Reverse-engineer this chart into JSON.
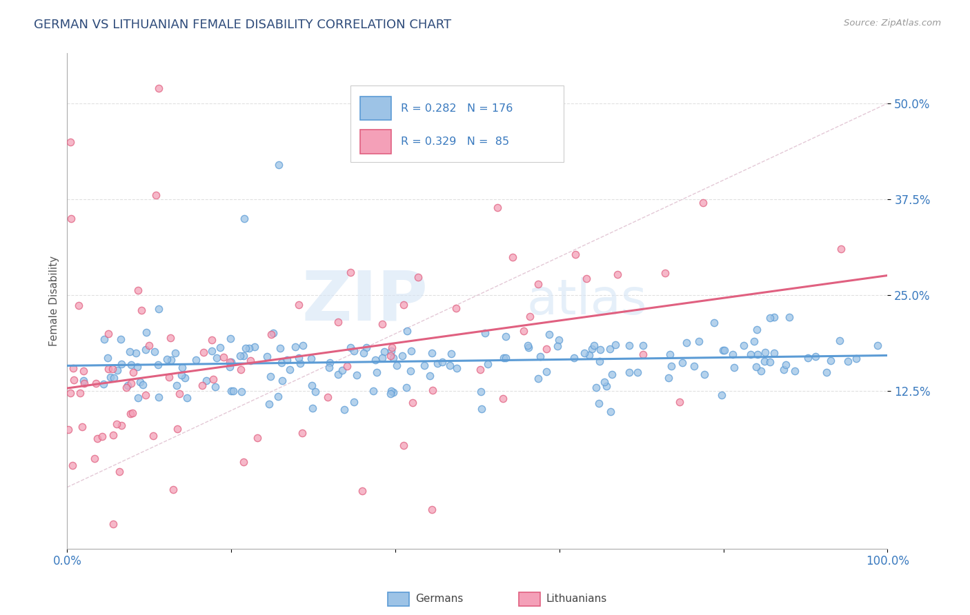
{
  "title": "GERMAN VS LITHUANIAN FEMALE DISABILITY CORRELATION CHART",
  "source": "Source: ZipAtlas.com",
  "ylabel": "Female Disability",
  "ytick_labels": [
    "12.5%",
    "25.0%",
    "37.5%",
    "50.0%"
  ],
  "ytick_values": [
    0.125,
    0.25,
    0.375,
    0.5
  ],
  "xlim": [
    0.0,
    1.0
  ],
  "ylim": [
    -0.08,
    0.565
  ],
  "german_color": "#5b9bd5",
  "german_face": "#9dc3e6",
  "lithuanian_color": "#e06080",
  "lithuanian_face": "#f4a0b8",
  "R_german": 0.282,
  "N_german": 176,
  "R_lithuanian": 0.329,
  "N_lithuanian": 85,
  "watermark_zip": "ZIP",
  "watermark_atlas": "atlas",
  "legend_german": "Germans",
  "legend_lithuanian": "Lithuanians",
  "background_color": "#ffffff",
  "grid_color": "#dddddd",
  "title_color": "#2e4b7a",
  "axis_label_color": "#555555",
  "tick_label_color": "#3a7abf",
  "legend_text_color": "#3a7abf"
}
